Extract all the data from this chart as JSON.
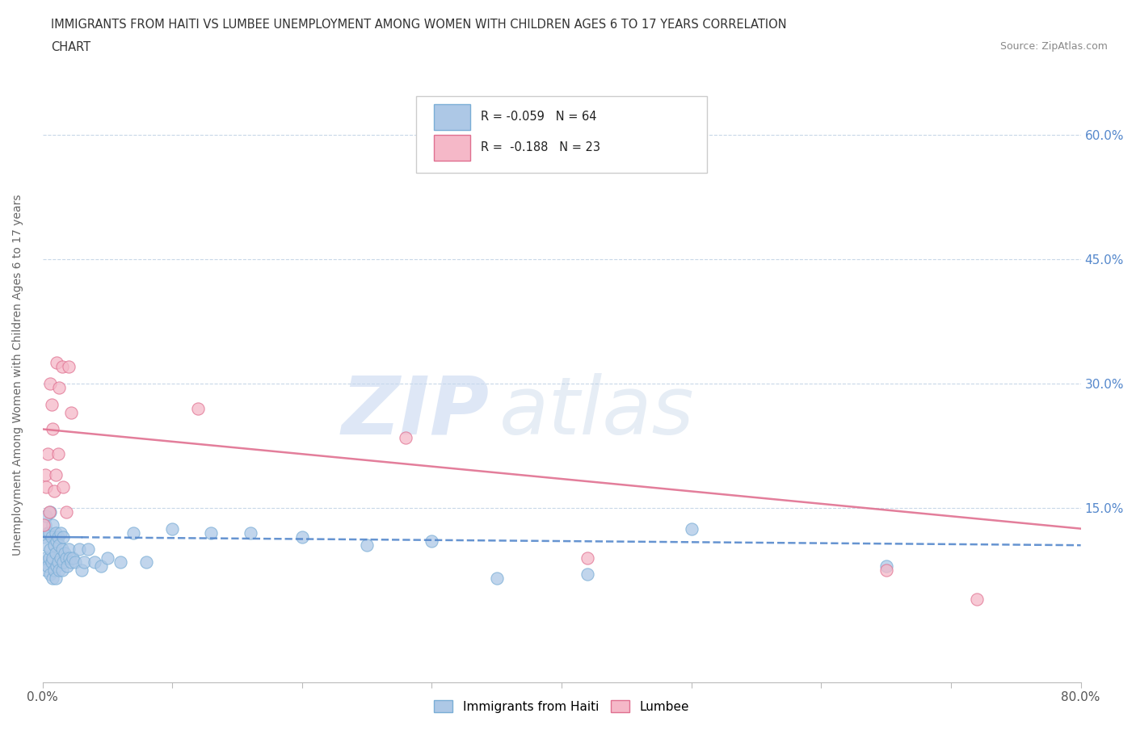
{
  "title_line1": "IMMIGRANTS FROM HAITI VS LUMBEE UNEMPLOYMENT AMONG WOMEN WITH CHILDREN AGES 6 TO 17 YEARS CORRELATION",
  "title_line2": "CHART",
  "source": "Source: ZipAtlas.com",
  "ylabel": "Unemployment Among Women with Children Ages 6 to 17 years",
  "yticks": [
    "60.0%",
    "45.0%",
    "30.0%",
    "15.0%"
  ],
  "ytick_vals": [
    0.6,
    0.45,
    0.3,
    0.15
  ],
  "xmin": 0.0,
  "xmax": 0.8,
  "ymin": -0.06,
  "ymax": 0.68,
  "haiti_color": "#adc8e6",
  "haiti_edge_color": "#7aaed6",
  "lumbee_color": "#f5b8c8",
  "lumbee_edge_color": "#e07090",
  "haiti_R": -0.059,
  "haiti_N": 64,
  "lumbee_R": -0.188,
  "lumbee_N": 23,
  "trendline_haiti_color": "#5588cc",
  "trendline_lumbee_color": "#e07090",
  "haiti_scatter_x": [
    0.001,
    0.001,
    0.002,
    0.002,
    0.003,
    0.003,
    0.003,
    0.004,
    0.004,
    0.005,
    0.005,
    0.006,
    0.006,
    0.006,
    0.007,
    0.007,
    0.008,
    0.008,
    0.008,
    0.009,
    0.009,
    0.01,
    0.01,
    0.01,
    0.011,
    0.011,
    0.012,
    0.012,
    0.013,
    0.013,
    0.014,
    0.014,
    0.015,
    0.015,
    0.016,
    0.016,
    0.017,
    0.018,
    0.019,
    0.02,
    0.021,
    0.022,
    0.023,
    0.025,
    0.028,
    0.03,
    0.032,
    0.035,
    0.04,
    0.045,
    0.05,
    0.06,
    0.07,
    0.08,
    0.1,
    0.13,
    0.16,
    0.2,
    0.25,
    0.3,
    0.35,
    0.42,
    0.5,
    0.65
  ],
  "haiti_scatter_y": [
    0.085,
    0.115,
    0.09,
    0.13,
    0.075,
    0.105,
    0.14,
    0.08,
    0.12,
    0.09,
    0.12,
    0.07,
    0.1,
    0.145,
    0.085,
    0.115,
    0.065,
    0.09,
    0.13,
    0.075,
    0.105,
    0.065,
    0.095,
    0.12,
    0.08,
    0.11,
    0.085,
    0.115,
    0.075,
    0.105,
    0.09,
    0.12,
    0.075,
    0.1,
    0.085,
    0.115,
    0.095,
    0.09,
    0.08,
    0.1,
    0.09,
    0.085,
    0.09,
    0.085,
    0.1,
    0.075,
    0.085,
    0.1,
    0.085,
    0.08,
    0.09,
    0.085,
    0.12,
    0.085,
    0.125,
    0.12,
    0.12,
    0.115,
    0.105,
    0.11,
    0.065,
    0.07,
    0.125,
    0.08
  ],
  "lumbee_scatter_x": [
    0.001,
    0.002,
    0.003,
    0.004,
    0.005,
    0.006,
    0.007,
    0.008,
    0.009,
    0.01,
    0.011,
    0.012,
    0.013,
    0.015,
    0.016,
    0.018,
    0.02,
    0.022,
    0.12,
    0.28,
    0.42,
    0.65,
    0.72
  ],
  "lumbee_scatter_y": [
    0.13,
    0.19,
    0.175,
    0.215,
    0.145,
    0.3,
    0.275,
    0.245,
    0.17,
    0.19,
    0.325,
    0.215,
    0.295,
    0.32,
    0.175,
    0.145,
    0.32,
    0.265,
    0.27,
    0.235,
    0.09,
    0.075,
    0.04
  ],
  "haiti_trend_x0": 0.0,
  "haiti_trend_x1": 0.8,
  "haiti_trend_y0": 0.115,
  "haiti_trend_y1": 0.105,
  "lumbee_trend_x0": 0.0,
  "lumbee_trend_x1": 0.8,
  "lumbee_trend_y0": 0.245,
  "lumbee_trend_y1": 0.125
}
